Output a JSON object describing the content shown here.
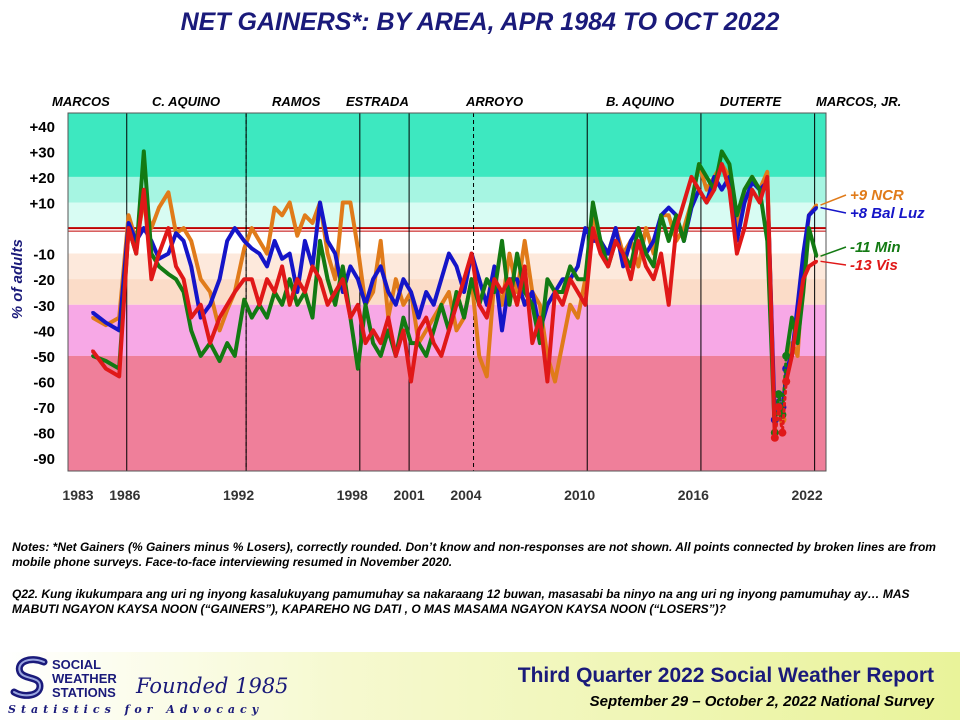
{
  "title": "NET GAINERS*: BY AREA, APR 1984 TO OCT 2022",
  "presidents": [
    {
      "name": "MARCOS",
      "year": 1985
    },
    {
      "name": "C. AQUINO",
      "year": 1989
    },
    {
      "name": "RAMOS",
      "year": 1994.8
    },
    {
      "name": "ESTRADA",
      "year": 1999.5
    },
    {
      "name": "ARROYO",
      "year": 2005.8
    },
    {
      "name": "B. AQUINO",
      "year": 2012.8
    },
    {
      "name": "DUTERTE",
      "year": 2018.3
    },
    {
      "name": "MARCOS,  JR.",
      "year": 2023
    }
  ],
  "notes": "Notes: *Net Gainers (% Gainers minus % Losers), correctly  rounded.  Don’t know and non-responses are not shown. All points connected by broken lines are from mobile phone surveys. Face-to-face  interviewing resumed in November 2020.",
  "q22": "Q22. Kung ikukumpara ang uri ng inyong kasalukuyang pamumuhay sa nakaraang 12 buwan, masasabi ba ninyo na ang uri ng inyong pamumuhay ay… MAS MABUTI NGAYON KAYSA NOON (“GAINERS”), KAPAREHO NG DATI , O MAS MASAMA NGAYON KAYSA NOON (“LOSERS”)?",
  "footer": {
    "org_line1": "SOCIAL",
    "org_line2": "WEATHER",
    "org_line3": "STATIONS",
    "founded": "Founded 1985",
    "tagline": "Statistics for Advocacy",
    "report_title": "Third Quarter 2022 Social Weather Report",
    "report_sub": "September 29 – October 2, 2022 National Survey"
  },
  "chart_data": {
    "type": "line",
    "title": "NET GAINERS*: BY AREA, APR 1984 TO OCT 2022",
    "ylabel": "% of adults",
    "xlim": [
      1983,
      2023
    ],
    "ylim": [
      -95,
      45
    ],
    "x_ticks": [
      1983,
      1986,
      1992,
      1998,
      2001,
      2004,
      2010,
      2016,
      2022
    ],
    "y_ticks": [
      "+40",
      "+30",
      "+20",
      "+10",
      "-10",
      "-20",
      "-30",
      "-40",
      "-50",
      "-60",
      "-70",
      "-80",
      "-90"
    ],
    "y_tick_values": [
      40,
      30,
      20,
      10,
      -10,
      -20,
      -30,
      -40,
      -50,
      -60,
      -70,
      -80,
      -90
    ],
    "administration_boundaries": [
      1986.1,
      1992.4,
      1998.4,
      2001.0,
      2010.4,
      2016.4,
      2022.4
    ],
    "mobile_survey_period": [
      2020.3,
      2020.9
    ],
    "series": [
      {
        "name": "NCR",
        "end_label": "+9 NCR",
        "color": "#e07b1a",
        "x": [
          1984.3,
          1985.0,
          1985.7,
          1986.2,
          1986.6,
          1987.0,
          1987.4,
          1987.8,
          1988.3,
          1988.7,
          1989.1,
          1989.5,
          1990.0,
          1990.5,
          1991.0,
          1991.4,
          1991.8,
          1992.3,
          1992.7,
          1993.1,
          1993.5,
          1993.9,
          1994.3,
          1994.7,
          1995.1,
          1995.5,
          1995.9,
          1996.3,
          1996.7,
          1997.1,
          1997.5,
          1997.9,
          1998.3,
          1998.7,
          1999.1,
          1999.5,
          1999.9,
          2000.3,
          2000.7,
          2001.1,
          2001.5,
          2001.9,
          2002.3,
          2002.7,
          2003.1,
          2003.5,
          2003.9,
          2004.3,
          2004.7,
          2005.1,
          2005.5,
          2005.9,
          2006.3,
          2006.7,
          2007.1,
          2007.5,
          2007.9,
          2008.3,
          2008.7,
          2009.1,
          2009.5,
          2009.9,
          2010.3,
          2010.7,
          2011.1,
          2011.5,
          2011.9,
          2012.3,
          2012.7,
          2013.1,
          2013.5,
          2013.9,
          2014.3,
          2014.7,
          2015.1,
          2015.5,
          2015.9,
          2016.3,
          2016.7,
          2017.1,
          2017.5,
          2017.9,
          2018.3,
          2018.7,
          2019.1,
          2019.5,
          2019.9,
          2020.3,
          2020.5,
          2020.7,
          2020.9,
          2021.2,
          2021.5,
          2021.8,
          2022.1,
          2022.5
        ],
        "y": [
          -35,
          -38,
          -35,
          5,
          -5,
          10,
          0,
          8,
          14,
          -2,
          0,
          -5,
          -20,
          -25,
          -40,
          -32,
          -25,
          -8,
          0,
          -5,
          -10,
          8,
          5,
          10,
          -3,
          5,
          2,
          10,
          -10,
          -20,
          10,
          10,
          -8,
          -30,
          -25,
          -5,
          -35,
          -20,
          -30,
          -25,
          -45,
          -40,
          -35,
          -30,
          -25,
          -40,
          -35,
          -20,
          -50,
          -58,
          -20,
          -30,
          -10,
          -25,
          -5,
          -25,
          -30,
          -50,
          -60,
          -45,
          -30,
          -35,
          -20,
          5,
          -5,
          -10,
          0,
          -10,
          -5,
          -15,
          0,
          -10,
          5,
          5,
          -5,
          0,
          10,
          25,
          15,
          20,
          25,
          20,
          0,
          15,
          20,
          15,
          22,
          -80,
          -70,
          -75,
          -60,
          -45,
          -50,
          -15,
          5,
          9
        ]
      },
      {
        "name": "Bal Luz",
        "end_label": "+8 Bal Luz",
        "color": "#1515c8",
        "x": [
          1984.3,
          1985.0,
          1985.7,
          1986.2,
          1986.6,
          1987.0,
          1987.4,
          1987.8,
          1988.3,
          1988.7,
          1989.1,
          1989.5,
          1990.0,
          1990.5,
          1991.0,
          1991.4,
          1991.8,
          1992.3,
          1992.7,
          1993.1,
          1993.5,
          1993.9,
          1994.3,
          1994.7,
          1995.1,
          1995.5,
          1995.9,
          1996.3,
          1996.7,
          1997.1,
          1997.5,
          1997.9,
          1998.3,
          1998.7,
          1999.1,
          1999.5,
          1999.9,
          2000.3,
          2000.7,
          2001.1,
          2001.5,
          2001.9,
          2002.3,
          2002.7,
          2003.1,
          2003.5,
          2003.9,
          2004.3,
          2004.7,
          2005.1,
          2005.5,
          2005.9,
          2006.3,
          2006.7,
          2007.1,
          2007.5,
          2007.9,
          2008.3,
          2008.7,
          2009.1,
          2009.5,
          2009.9,
          2010.3,
          2010.7,
          2011.1,
          2011.5,
          2011.9,
          2012.3,
          2012.7,
          2013.1,
          2013.5,
          2013.9,
          2014.3,
          2014.7,
          2015.1,
          2015.5,
          2015.9,
          2016.3,
          2016.7,
          2017.1,
          2017.5,
          2017.9,
          2018.3,
          2018.7,
          2019.1,
          2019.5,
          2019.9,
          2020.3,
          2020.5,
          2020.7,
          2020.9,
          2021.2,
          2021.5,
          2021.8,
          2022.1,
          2022.5
        ],
        "y": [
          -33,
          -37,
          -40,
          2,
          -5,
          0,
          -5,
          -12,
          -10,
          -2,
          -5,
          -15,
          -35,
          -30,
          -20,
          -5,
          0,
          -5,
          -8,
          -10,
          -15,
          -5,
          -12,
          -10,
          -25,
          -5,
          -15,
          10,
          -5,
          -10,
          -25,
          -15,
          -20,
          -30,
          -20,
          -15,
          -25,
          -30,
          -20,
          -25,
          -35,
          -25,
          -30,
          -20,
          -10,
          -15,
          -25,
          -10,
          -20,
          -30,
          -15,
          -40,
          -20,
          -20,
          -30,
          -25,
          -40,
          -30,
          -25,
          -20,
          -20,
          -15,
          0,
          -5,
          -5,
          -10,
          0,
          -15,
          -5,
          0,
          -10,
          -5,
          5,
          8,
          5,
          -5,
          8,
          15,
          10,
          20,
          15,
          20,
          -5,
          10,
          18,
          15,
          18,
          -75,
          -65,
          -70,
          -55,
          -50,
          -30,
          -10,
          5,
          8
        ]
      },
      {
        "name": "Min",
        "end_label": "-11 Min",
        "color": "#137a13",
        "x": [
          1984.3,
          1985.0,
          1985.7,
          1986.2,
          1986.6,
          1987.0,
          1987.4,
          1987.8,
          1988.3,
          1988.7,
          1989.1,
          1989.5,
          1990.0,
          1990.5,
          1991.0,
          1991.4,
          1991.8,
          1992.3,
          1992.7,
          1993.1,
          1993.5,
          1993.9,
          1994.3,
          1994.7,
          1995.1,
          1995.5,
          1995.9,
          1996.3,
          1996.7,
          1997.1,
          1997.5,
          1997.9,
          1998.3,
          1998.7,
          1999.1,
          1999.5,
          1999.9,
          2000.3,
          2000.7,
          2001.1,
          2001.5,
          2001.9,
          2002.3,
          2002.7,
          2003.1,
          2003.5,
          2003.9,
          2004.3,
          2004.7,
          2005.1,
          2005.5,
          2005.9,
          2006.3,
          2006.7,
          2007.1,
          2007.5,
          2007.9,
          2008.3,
          2008.7,
          2009.1,
          2009.5,
          2009.9,
          2010.3,
          2010.7,
          2011.1,
          2011.5,
          2011.9,
          2012.3,
          2012.7,
          2013.1,
          2013.5,
          2013.9,
          2014.3,
          2014.7,
          2015.1,
          2015.5,
          2015.9,
          2016.3,
          2016.7,
          2017.1,
          2017.5,
          2017.9,
          2018.3,
          2018.7,
          2019.1,
          2019.5,
          2019.9,
          2020.3,
          2020.5,
          2020.7,
          2020.9,
          2021.2,
          2021.5,
          2021.8,
          2022.1,
          2022.5
        ],
        "y": [
          -50,
          -52,
          -55,
          0,
          -10,
          30,
          -10,
          -15,
          -18,
          -20,
          -25,
          -40,
          -50,
          -45,
          -52,
          -45,
          -50,
          -28,
          -35,
          -30,
          -35,
          -25,
          -30,
          -20,
          -30,
          -25,
          -35,
          -5,
          -20,
          -30,
          -15,
          -35,
          -55,
          -30,
          -45,
          -50,
          -40,
          -50,
          -35,
          -45,
          -45,
          -50,
          -40,
          -30,
          -40,
          -25,
          -35,
          -20,
          -30,
          -20,
          -25,
          -5,
          -30,
          -10,
          -25,
          -30,
          -45,
          -20,
          -25,
          -25,
          -15,
          -20,
          -20,
          10,
          -5,
          -15,
          -5,
          -10,
          -15,
          0,
          -10,
          -15,
          5,
          -5,
          5,
          -5,
          10,
          25,
          20,
          15,
          30,
          25,
          5,
          15,
          20,
          15,
          -5,
          -80,
          -65,
          -73,
          -50,
          -35,
          -45,
          -25,
          0,
          -11
        ]
      },
      {
        "name": "Vis",
        "end_label": "-13 Vis",
        "color": "#e01818",
        "x": [
          1984.3,
          1985.0,
          1985.7,
          1986.2,
          1986.6,
          1987.0,
          1987.4,
          1987.8,
          1988.3,
          1988.7,
          1989.1,
          1989.5,
          1990.0,
          1990.5,
          1991.0,
          1991.4,
          1991.8,
          1992.3,
          1992.7,
          1993.1,
          1993.5,
          1993.9,
          1994.3,
          1994.7,
          1995.1,
          1995.5,
          1995.9,
          1996.3,
          1996.7,
          1997.1,
          1997.5,
          1997.9,
          1998.3,
          1998.7,
          1999.1,
          1999.5,
          1999.9,
          2000.3,
          2000.7,
          2001.1,
          2001.5,
          2001.9,
          2002.3,
          2002.7,
          2003.1,
          2003.5,
          2003.9,
          2004.3,
          2004.7,
          2005.1,
          2005.5,
          2005.9,
          2006.3,
          2006.7,
          2007.1,
          2007.5,
          2007.9,
          2008.3,
          2008.7,
          2009.1,
          2009.5,
          2009.9,
          2010.3,
          2010.7,
          2011.1,
          2011.5,
          2011.9,
          2012.3,
          2012.7,
          2013.1,
          2013.5,
          2013.9,
          2014.3,
          2014.7,
          2015.1,
          2015.5,
          2015.9,
          2016.3,
          2016.7,
          2017.1,
          2017.5,
          2017.9,
          2018.3,
          2018.7,
          2019.1,
          2019.5,
          2019.9,
          2020.3,
          2020.5,
          2020.7,
          2020.9,
          2021.2,
          2021.5,
          2021.8,
          2022.1,
          2022.5
        ],
        "y": [
          -48,
          -55,
          -58,
          0,
          -10,
          15,
          -20,
          -10,
          0,
          -15,
          -20,
          -35,
          -30,
          -45,
          -35,
          -30,
          -25,
          -20,
          -20,
          -30,
          -20,
          -25,
          -15,
          -30,
          -20,
          -25,
          -15,
          -20,
          -30,
          -25,
          -20,
          -35,
          -30,
          -45,
          -40,
          -45,
          -35,
          -50,
          -40,
          -60,
          -40,
          -35,
          -45,
          -50,
          -40,
          -30,
          -20,
          -10,
          -30,
          -35,
          -20,
          -25,
          -20,
          -30,
          -15,
          -45,
          -35,
          -60,
          -25,
          -30,
          -20,
          -25,
          -30,
          0,
          -10,
          -15,
          -5,
          -10,
          -20,
          -5,
          -15,
          -20,
          -10,
          -30,
          0,
          10,
          20,
          15,
          10,
          15,
          25,
          15,
          -10,
          0,
          15,
          10,
          20,
          -82,
          -70,
          -80,
          -60,
          -50,
          -35,
          -20,
          -15,
          -13
        ]
      }
    ]
  }
}
